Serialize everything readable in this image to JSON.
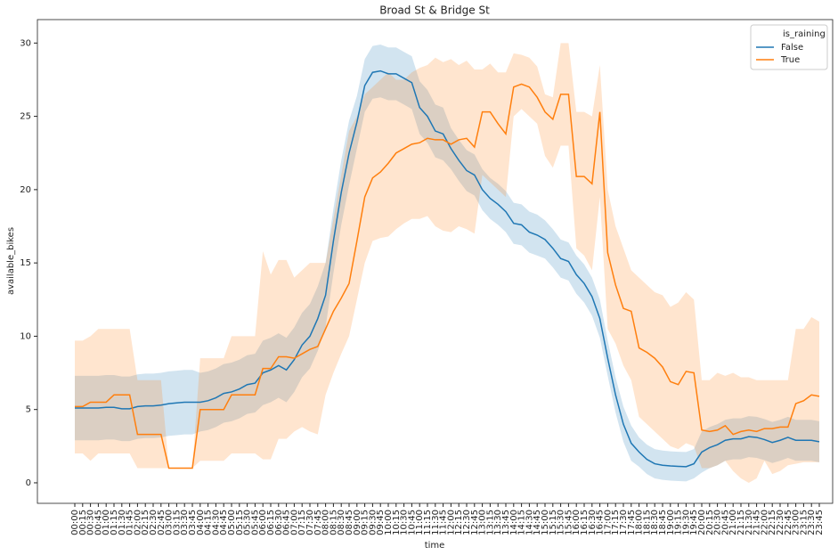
{
  "chart_data": {
    "type": "line",
    "title": "Broad St & Bridge St",
    "x_label": "time",
    "y_label": "available_bikes",
    "legend_title": "is_raining",
    "legend_position": "upper right",
    "categories": [
      "00:00",
      "00:15",
      "00:30",
      "00:45",
      "01:00",
      "01:15",
      "01:30",
      "01:45",
      "02:00",
      "02:15",
      "02:30",
      "02:45",
      "03:00",
      "03:15",
      "03:30",
      "03:45",
      "04:00",
      "04:15",
      "04:30",
      "04:45",
      "05:00",
      "05:15",
      "05:30",
      "05:45",
      "06:00",
      "06:15",
      "06:30",
      "06:45",
      "07:00",
      "07:15",
      "07:30",
      "07:45",
      "08:00",
      "08:15",
      "08:30",
      "08:45",
      "09:00",
      "09:15",
      "09:30",
      "09:45",
      "10:00",
      "10:15",
      "10:30",
      "10:45",
      "11:00",
      "11:15",
      "11:30",
      "11:45",
      "12:00",
      "12:15",
      "12:30",
      "12:45",
      "13:00",
      "13:15",
      "13:30",
      "13:45",
      "14:00",
      "14:15",
      "14:30",
      "14:45",
      "15:00",
      "15:15",
      "15:30",
      "15:45",
      "16:00",
      "16:15",
      "16:30",
      "16:45",
      "17:00",
      "17:15",
      "17:30",
      "17:45",
      "18:00",
      "18:15",
      "18:30",
      "18:45",
      "19:00",
      "19:15",
      "19:30",
      "19:45",
      "20:00",
      "20:15",
      "20:30",
      "20:45",
      "21:00",
      "21:15",
      "21:30",
      "21:45",
      "22:00",
      "22:15",
      "22:30",
      "22:45",
      "23:00",
      "23:15",
      "23:30",
      "23:45"
    ],
    "series": [
      {
        "name": "False",
        "color": "#1f77b4",
        "values": [
          5.1,
          5.1,
          5.1,
          5.1,
          5.15,
          5.15,
          5.05,
          5.05,
          5.2,
          5.25,
          5.25,
          5.3,
          5.4,
          5.45,
          5.5,
          5.5,
          5.5,
          5.6,
          5.8,
          6.1,
          6.2,
          6.4,
          6.7,
          6.8,
          7.5,
          7.7,
          8.0,
          7.7,
          8.4,
          9.4,
          10.0,
          11.2,
          12.8,
          16.5,
          19.8,
          22.5,
          24.6,
          27.1,
          28.0,
          28.1,
          27.9,
          27.9,
          27.6,
          27.3,
          25.6,
          25.0,
          24.0,
          23.8,
          22.8,
          22.0,
          21.3,
          21.0,
          20.0,
          19.4,
          19.0,
          18.5,
          17.7,
          17.6,
          17.1,
          16.9,
          16.6,
          16.0,
          15.3,
          15.1,
          14.2,
          13.6,
          12.7,
          11.2,
          8.5,
          6.0,
          4.0,
          2.7,
          2.1,
          1.6,
          1.3,
          1.2,
          1.15,
          1.12,
          1.1,
          1.3,
          2.1,
          2.4,
          2.6,
          2.9,
          3.0,
          3.0,
          3.15,
          3.1,
          2.95,
          2.75,
          2.9,
          3.1,
          2.9,
          2.9,
          2.9,
          2.8
        ],
        "lower": [
          2.9,
          2.9,
          2.9,
          2.9,
          2.95,
          2.95,
          2.85,
          2.85,
          3.0,
          3.05,
          3.05,
          3.1,
          3.2,
          3.25,
          3.3,
          3.3,
          3.5,
          3.6,
          3.8,
          4.1,
          4.2,
          4.4,
          4.7,
          4.8,
          5.3,
          5.5,
          5.8,
          5.5,
          6.2,
          7.2,
          7.8,
          9.0,
          10.6,
          14.3,
          17.6,
          20.3,
          22.8,
          25.3,
          26.2,
          26.3,
          26.1,
          26.1,
          25.8,
          25.5,
          23.8,
          23.2,
          22.2,
          22.0,
          21.4,
          20.6,
          19.9,
          19.6,
          18.6,
          18.0,
          17.6,
          17.1,
          16.3,
          16.2,
          15.7,
          15.5,
          15.3,
          14.7,
          14.0,
          13.8,
          12.9,
          12.3,
          11.4,
          9.9,
          7.3,
          4.8,
          2.8,
          1.5,
          1.1,
          0.6,
          0.3,
          0.2,
          0.15,
          0.12,
          0.1,
          0.3,
          0.7,
          1.0,
          1.2,
          1.5,
          1.6,
          1.6,
          1.75,
          1.7,
          1.55,
          1.35,
          1.5,
          1.7,
          1.5,
          1.5,
          1.5,
          1.4
        ],
        "upper": [
          7.3,
          7.3,
          7.3,
          7.3,
          7.35,
          7.35,
          7.25,
          7.25,
          7.4,
          7.45,
          7.45,
          7.5,
          7.6,
          7.65,
          7.7,
          7.7,
          7.5,
          7.6,
          7.8,
          8.1,
          8.2,
          8.4,
          8.7,
          8.8,
          9.7,
          9.9,
          10.2,
          9.9,
          10.6,
          11.6,
          12.2,
          13.4,
          15.0,
          18.7,
          22.0,
          24.7,
          26.4,
          28.9,
          29.8,
          29.9,
          29.7,
          29.7,
          29.4,
          29.1,
          27.4,
          26.8,
          25.8,
          25.6,
          24.2,
          23.4,
          22.7,
          22.4,
          21.4,
          20.8,
          20.4,
          19.9,
          19.1,
          19.0,
          18.5,
          18.3,
          17.9,
          17.3,
          16.6,
          16.4,
          15.5,
          14.9,
          14.0,
          12.5,
          9.7,
          7.2,
          5.2,
          3.9,
          3.1,
          2.6,
          2.3,
          2.2,
          2.15,
          2.12,
          2.1,
          2.3,
          3.5,
          3.8,
          4.0,
          4.3,
          4.4,
          4.4,
          4.55,
          4.5,
          4.35,
          4.15,
          4.3,
          4.5,
          4.3,
          4.3,
          4.3,
          4.2
        ]
      },
      {
        "name": "True",
        "color": "#ff7f0e",
        "values": [
          5.2,
          5.2,
          5.5,
          5.5,
          5.5,
          6.0,
          6.0,
          6.0,
          3.3,
          3.3,
          3.3,
          3.3,
          1.0,
          1.0,
          1.0,
          1.0,
          5.0,
          5.0,
          5.0,
          5.0,
          6.0,
          6.0,
          6.0,
          6.0,
          7.8,
          7.8,
          8.6,
          8.6,
          8.5,
          8.8,
          9.1,
          9.3,
          10.5,
          11.7,
          12.6,
          13.6,
          16.5,
          19.5,
          20.8,
          21.2,
          21.8,
          22.5,
          22.8,
          23.1,
          23.2,
          23.5,
          23.4,
          23.4,
          23.1,
          23.4,
          23.5,
          22.9,
          25.3,
          25.3,
          24.5,
          23.8,
          27.0,
          27.2,
          27.0,
          26.3,
          25.3,
          24.8,
          26.5,
          26.5,
          20.9,
          20.9,
          20.4,
          25.3,
          15.7,
          13.5,
          11.9,
          11.7,
          9.2,
          8.9,
          8.5,
          7.9,
          6.9,
          6.7,
          7.6,
          7.5,
          3.6,
          3.5,
          3.6,
          3.9,
          3.3,
          3.5,
          3.6,
          3.5,
          3.7,
          3.7,
          3.8,
          3.8,
          5.4,
          5.6,
          6.0,
          5.9
        ],
        "lower": [
          2.0,
          2.0,
          1.5,
          2.0,
          2.0,
          2.0,
          2.0,
          2.0,
          1.0,
          1.0,
          1.0,
          1.0,
          1.0,
          1.0,
          1.0,
          1.0,
          1.5,
          1.5,
          1.5,
          1.5,
          2.0,
          2.0,
          2.0,
          2.0,
          1.6,
          1.6,
          3.0,
          3.0,
          3.5,
          3.8,
          3.5,
          3.3,
          6.0,
          7.5,
          8.8,
          10.0,
          12.5,
          15.0,
          16.5,
          16.7,
          16.8,
          17.3,
          17.7,
          18.0,
          18.0,
          18.2,
          17.5,
          17.2,
          17.1,
          17.5,
          17.3,
          17.0,
          21.0,
          20.5,
          20.0,
          19.5,
          25.0,
          25.5,
          25.0,
          24.5,
          22.3,
          21.5,
          23.0,
          23.0,
          16.0,
          15.5,
          14.5,
          19.5,
          10.5,
          9.5,
          8.0,
          7.0,
          4.5,
          4.0,
          3.5,
          3.0,
          2.5,
          2.3,
          2.7,
          2.5,
          1.0,
          1.0,
          1.2,
          1.5,
          0.8,
          0.3,
          0.0,
          0.3,
          1.5,
          0.6,
          0.8,
          1.2,
          1.3,
          1.4,
          1.4,
          1.4
        ],
        "upper": [
          9.7,
          9.7,
          10.0,
          10.5,
          10.5,
          10.5,
          10.5,
          10.5,
          7.0,
          7.0,
          7.0,
          7.0,
          1.0,
          1.0,
          1.0,
          1.0,
          8.5,
          8.5,
          8.5,
          8.5,
          10.0,
          10.0,
          10.0,
          10.0,
          15.8,
          14.2,
          15.2,
          15.2,
          14.0,
          14.5,
          15.0,
          15.0,
          15.0,
          18.0,
          21.0,
          24.0,
          25.0,
          26.5,
          27.0,
          27.5,
          28.0,
          27.5,
          27.5,
          28.0,
          28.3,
          28.5,
          29.0,
          28.7,
          28.9,
          28.5,
          28.8,
          28.2,
          28.2,
          28.6,
          28.0,
          28.0,
          29.3,
          29.2,
          29.0,
          28.4,
          26.5,
          26.3,
          30.0,
          30.0,
          25.3,
          25.3,
          25.0,
          28.5,
          20.0,
          17.5,
          16.0,
          14.5,
          14.0,
          13.5,
          13.0,
          12.8,
          12.0,
          12.3,
          13.0,
          12.5,
          7.0,
          7.0,
          7.5,
          7.3,
          7.5,
          7.2,
          7.2,
          7.0,
          7.0,
          7.0,
          7.0,
          7.0,
          10.5,
          10.5,
          11.3,
          11.0
        ]
      }
    ],
    "ylim": [
      -1.4,
      31.6
    ],
    "yticks": [
      0,
      5,
      10,
      15,
      20,
      25,
      30
    ],
    "band_opacity": 0.2
  }
}
